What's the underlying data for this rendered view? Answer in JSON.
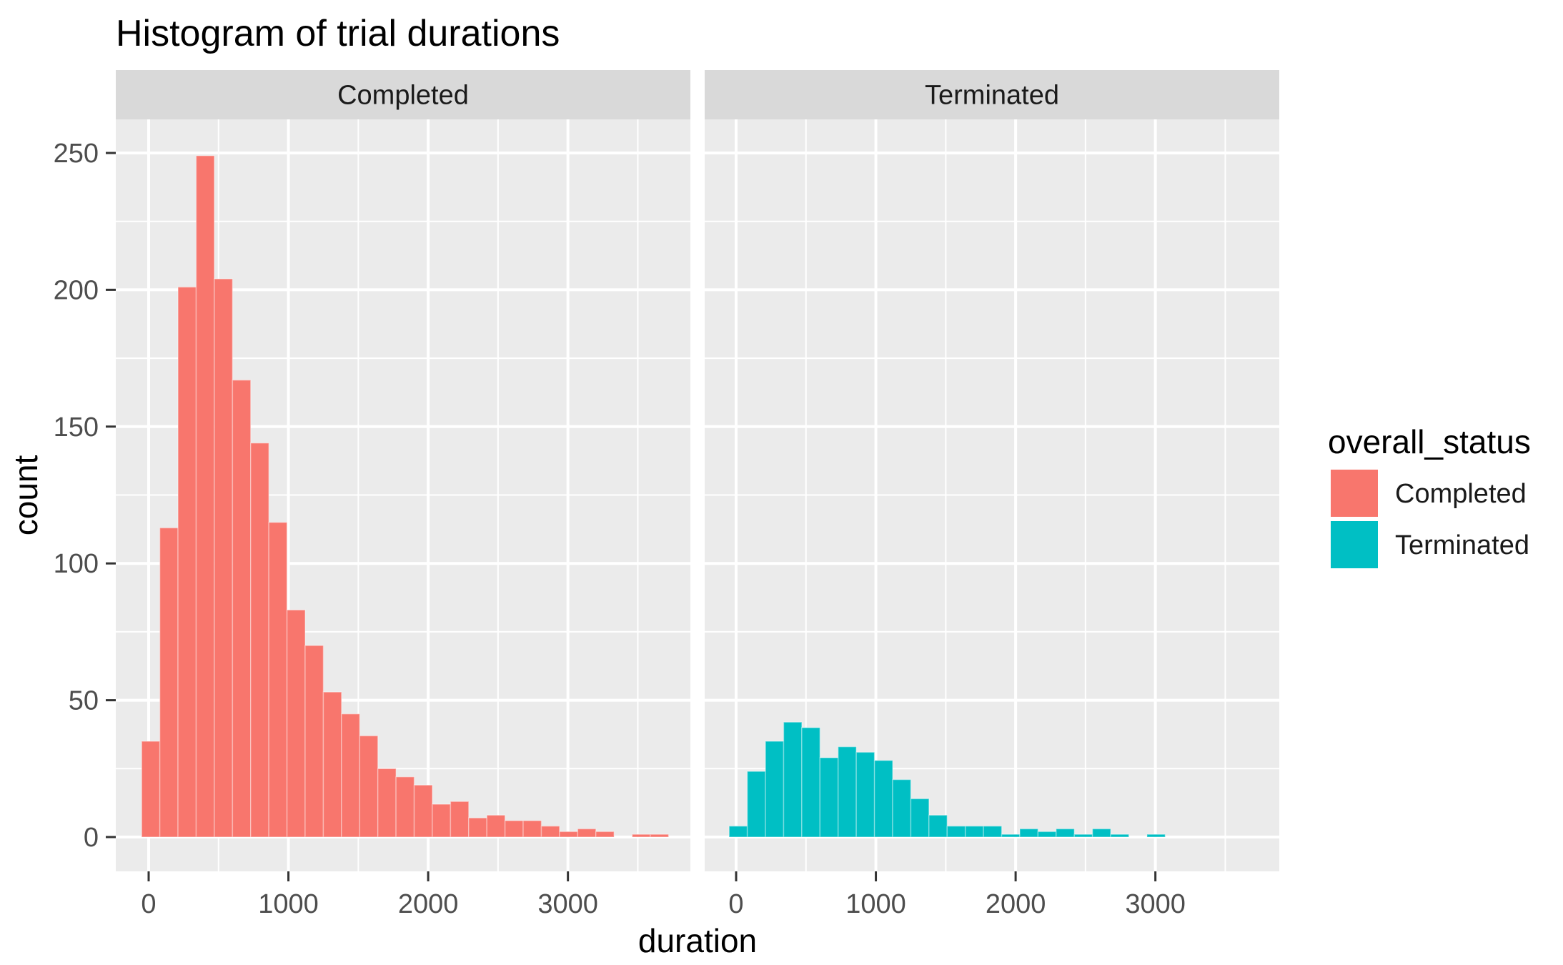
{
  "title": "Histogram of trial durations",
  "facets": [
    {
      "label": "Completed"
    },
    {
      "label": "Terminated"
    }
  ],
  "axes": {
    "x": {
      "label": "duration",
      "ticks": [
        "0",
        "1000",
        "2000",
        "3000"
      ]
    },
    "y": {
      "label": "count",
      "ticks": [
        "0",
        "50",
        "100",
        "150",
        "200",
        "250"
      ]
    }
  },
  "legend": {
    "title": "overall_status",
    "items": [
      {
        "label": "Completed",
        "color": "#F8766D"
      },
      {
        "label": "Terminated",
        "color": "#00BFC4"
      }
    ]
  },
  "colors": {
    "completed": "#F8766D",
    "terminated": "#00BFC4",
    "panel_bg": "#EBEBEB",
    "strip_bg": "#D9D9D9",
    "gridline": "#FFFFFF",
    "tick_text": "#4D4D4D",
    "axis_tick": "#333333"
  },
  "chart_data": {
    "type": "bar",
    "subtype": "histogram",
    "title": "Histogram of trial durations",
    "xlabel": "duration",
    "ylabel": "count",
    "facet_variable": "overall_status",
    "bin_start": -50,
    "bin_width": 130,
    "x_ticks": [
      0,
      1000,
      2000,
      3000
    ],
    "y_ticks": [
      0,
      50,
      100,
      150,
      200,
      250
    ],
    "x_minor_ticks": [
      500,
      1500,
      2500,
      3500
    ],
    "y_minor_ticks": [
      25,
      75,
      125,
      175,
      225
    ],
    "xlim": [
      -250,
      3950
    ],
    "ylim": [
      0,
      262
    ],
    "grid": "on",
    "legend_position": "right",
    "series": [
      {
        "name": "Completed",
        "color": "#F8766D",
        "counts": [
          35,
          113,
          201,
          249,
          204,
          167,
          144,
          115,
          83,
          70,
          53,
          45,
          37,
          25,
          22,
          19,
          12,
          13,
          7,
          8,
          6,
          6,
          4,
          2,
          3,
          2,
          0,
          1,
          1,
          0
        ]
      },
      {
        "name": "Terminated",
        "color": "#00BFC4",
        "counts": [
          4,
          24,
          35,
          42,
          40,
          29,
          33,
          31,
          28,
          21,
          14,
          8,
          4,
          4,
          4,
          1,
          3,
          2,
          3,
          1,
          3,
          1,
          0,
          1,
          0,
          0,
          0,
          0,
          0,
          0
        ]
      }
    ]
  }
}
